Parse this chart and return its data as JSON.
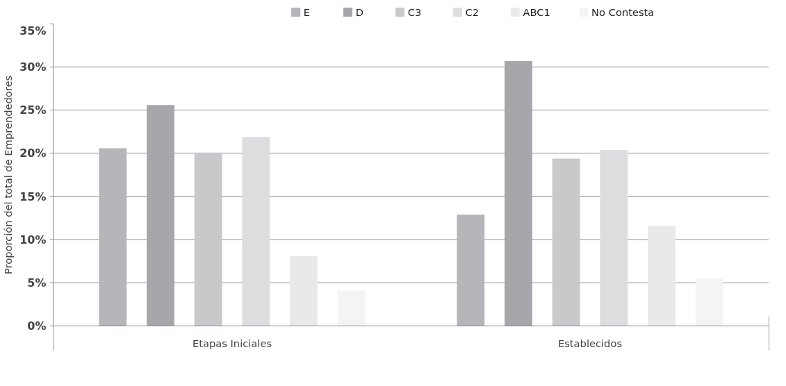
{
  "chart_data": {
    "type": "bar",
    "ylabel": "Proporción del total de Emprendedores",
    "categories": [
      "Etapas Iniciales",
      "Establecidos"
    ],
    "series": [
      {
        "name": "E",
        "color": "#b5b6ba",
        "values": [
          20.6,
          12.9
        ]
      },
      {
        "name": "D",
        "color": "#a6a7ab",
        "values": [
          25.6,
          30.7
        ]
      },
      {
        "name": "C3",
        "color": "#c8c9cb",
        "values": [
          20.1,
          19.4
        ]
      },
      {
        "name": "C2",
        "color": "#dcdddf",
        "values": [
          21.9,
          20.4
        ]
      },
      {
        "name": "ABC1",
        "color": "#e8e9e8",
        "values": [
          8.1,
          11.6
        ]
      },
      {
        "name": "No Contesta",
        "color": "#f3f4f3",
        "values": [
          4.1,
          5.5
        ]
      }
    ],
    "ylim": [
      0,
      35
    ],
    "yticks": [
      {
        "value": 0,
        "label": "0%"
      },
      {
        "value": 5,
        "label": "5%"
      },
      {
        "value": 10,
        "label": "10%"
      },
      {
        "value": 15,
        "label": "15%"
      },
      {
        "value": 20,
        "label": "20%"
      },
      {
        "value": 25,
        "label": "25%"
      },
      {
        "value": 30,
        "label": "30%"
      },
      {
        "value": 35,
        "label": "35%"
      }
    ],
    "grid": "y",
    "legend": "top"
  }
}
